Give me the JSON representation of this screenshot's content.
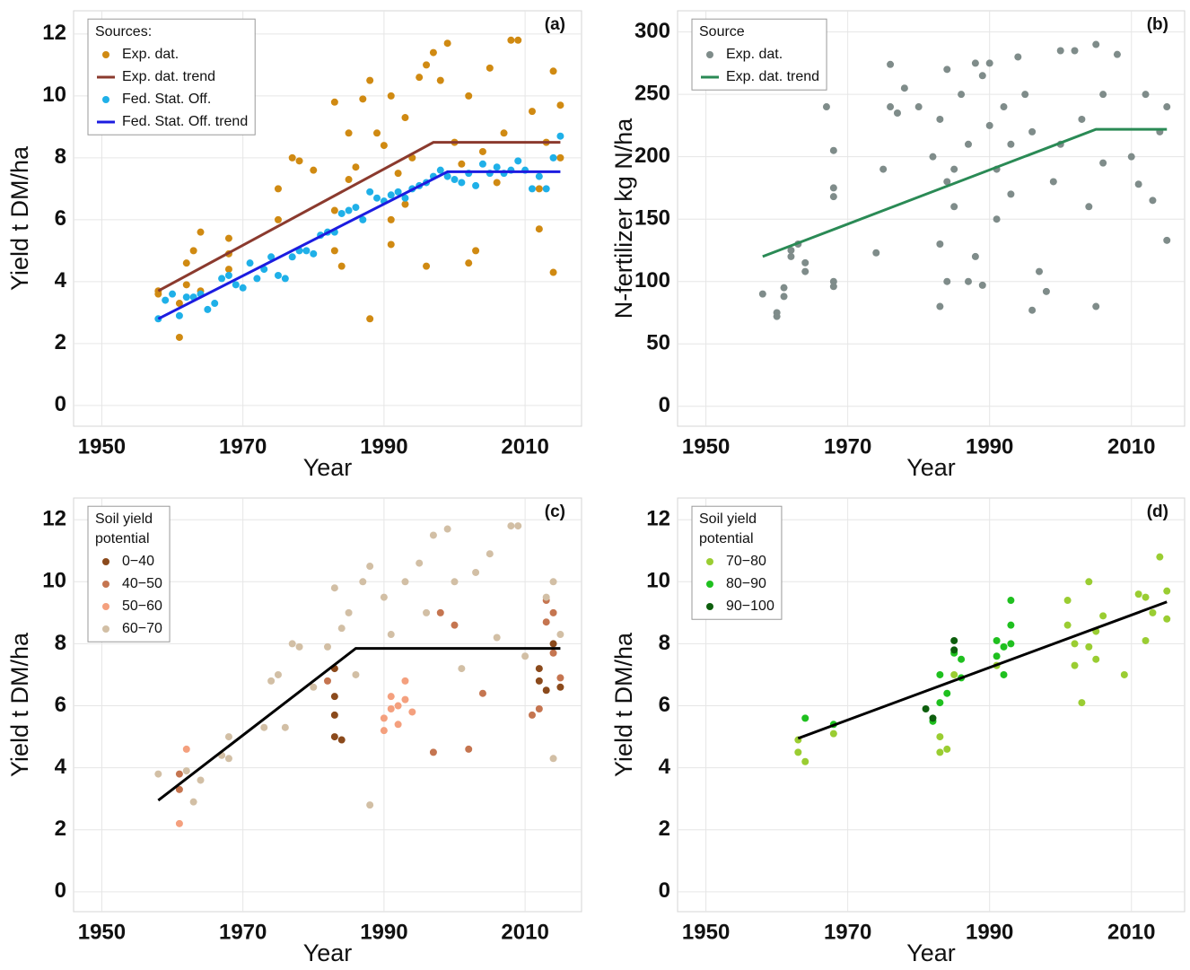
{
  "chart_data": [
    {
      "type": "scatter",
      "panel_label": "(a)",
      "x_label": "Year",
      "y_label": "Yield  t DM/ha",
      "legend_title": [
        "Sources:"
      ],
      "legend": "top-left",
      "grid": true,
      "xlim": [
        1946,
        2018
      ],
      "xticks": [
        1950,
        1970,
        1990,
        2010
      ],
      "ylim": [
        -0.67,
        12.75
      ],
      "yticks": [
        0,
        2,
        4,
        6,
        8,
        10,
        12
      ],
      "series": [
        {
          "name": "Exp. dat.",
          "color": "#d08a12",
          "mode": "markers",
          "x": [
            1958,
            1958,
            1961,
            1961,
            1962,
            1962,
            1963,
            1964,
            1964,
            1968,
            1968,
            1968,
            1975,
            1975,
            1977,
            1978,
            1980,
            1983,
            1983,
            1983,
            1984,
            1985,
            1985,
            1986,
            1987,
            1988,
            1988,
            1989,
            1990,
            1991,
            1991,
            1991,
            1992,
            1993,
            1993,
            1994,
            1995,
            1996,
            1996,
            1997,
            1998,
            1999,
            2000,
            2001,
            2002,
            2002,
            2003,
            2004,
            2005,
            2006,
            2007,
            2008,
            2009,
            2011,
            2012,
            2012,
            2013,
            2014,
            2014,
            2015,
            2015
          ],
          "values": [
            3.7,
            3.6,
            2.2,
            3.3,
            3.9,
            4.6,
            5.0,
            5.6,
            3.7,
            5.4,
            4.4,
            4.9,
            6.0,
            7.0,
            8.0,
            7.9,
            7.6,
            9.8,
            6.3,
            5.0,
            4.5,
            8.8,
            7.3,
            7.7,
            9.9,
            10.5,
            2.8,
            8.8,
            8.4,
            6.0,
            5.2,
            10.0,
            7.5,
            6.5,
            9.3,
            8.0,
            10.6,
            11.0,
            4.5,
            11.4,
            10.5,
            11.7,
            8.5,
            7.8,
            4.6,
            10.0,
            5.0,
            8.2,
            10.9,
            7.2,
            8.8,
            11.8,
            11.8,
            9.5,
            5.7,
            7.0,
            8.5,
            10.8,
            4.3,
            9.7,
            8.0
          ]
        },
        {
          "name": "Exp. dat. trend",
          "color": "#8b3a2e",
          "mode": "line",
          "x": [
            1958,
            1997,
            2015
          ],
          "values": [
            3.7,
            8.5,
            8.5
          ]
        },
        {
          "name": "Fed. Stat. Off.",
          "color": "#1fb0e8",
          "mode": "markers",
          "x": [
            1958,
            1959,
            1960,
            1961,
            1962,
            1963,
            1964,
            1965,
            1966,
            1967,
            1968,
            1969,
            1970,
            1971,
            1972,
            1973,
            1974,
            1975,
            1976,
            1977,
            1978,
            1979,
            1980,
            1981,
            1982,
            1983,
            1984,
            1985,
            1986,
            1987,
            1988,
            1989,
            1990,
            1991,
            1992,
            1993,
            1994,
            1995,
            1996,
            1997,
            1998,
            1999,
            2000,
            2001,
            2002,
            2003,
            2004,
            2005,
            2006,
            2007,
            2008,
            2009,
            2010,
            2011,
            2012,
            2013,
            2014,
            2015
          ],
          "values": [
            2.8,
            3.4,
            3.6,
            2.9,
            3.5,
            3.5,
            3.6,
            3.1,
            3.3,
            4.1,
            4.2,
            3.9,
            3.8,
            4.6,
            4.1,
            4.4,
            4.8,
            4.2,
            4.1,
            4.8,
            5.0,
            5.0,
            4.9,
            5.5,
            5.6,
            5.6,
            6.2,
            6.3,
            6.4,
            6.0,
            6.9,
            6.7,
            6.6,
            6.8,
            6.9,
            6.7,
            7.0,
            7.1,
            7.2,
            7.4,
            7.6,
            7.4,
            7.3,
            7.2,
            7.5,
            7.1,
            7.8,
            7.5,
            7.7,
            7.5,
            7.6,
            7.9,
            7.6,
            7.0,
            7.4,
            7.0,
            8.0,
            8.7
          ]
        },
        {
          "name": "Fed. Stat. Off. trend",
          "color": "#1c1ce0",
          "mode": "line",
          "x": [
            1958,
            1999,
            2015
          ],
          "values": [
            2.8,
            7.55,
            7.55
          ]
        }
      ]
    },
    {
      "type": "scatter",
      "panel_label": "(b)",
      "x_label": "Year",
      "y_label": "N-fertilizer  kg N/ha",
      "legend_title": [
        "Source"
      ],
      "legend": "top-left",
      "grid": true,
      "xlim": [
        1946,
        2017.5
      ],
      "xticks": [
        1950,
        1970,
        1990,
        2010
      ],
      "ylim": [
        -16,
        317
      ],
      "yticks": [
        0,
        50,
        100,
        150,
        200,
        250,
        300
      ],
      "series": [
        {
          "name": "Exp. dat.",
          "color": "#7f8c8a",
          "mode": "markers",
          "x": [
            1958,
            1960,
            1960,
            1961,
            1961,
            1962,
            1962,
            1963,
            1964,
            1964,
            1967,
            1968,
            1968,
            1968,
            1968,
            1968,
            1974,
            1975,
            1976,
            1976,
            1977,
            1978,
            1980,
            1982,
            1983,
            1983,
            1983,
            1984,
            1984,
            1984,
            1985,
            1985,
            1986,
            1987,
            1987,
            1988,
            1988,
            1989,
            1989,
            1990,
            1990,
            1991,
            1991,
            1992,
            1993,
            1993,
            1994,
            1995,
            1996,
            1996,
            1997,
            1998,
            1999,
            2000,
            2000,
            2002,
            2003,
            2004,
            2005,
            2005,
            2006,
            2006,
            2008,
            2010,
            2011,
            2012,
            2013,
            2014,
            2015,
            2015
          ],
          "values": [
            90,
            75,
            72,
            95,
            88,
            120,
            125,
            130,
            115,
            108,
            240,
            205,
            175,
            168,
            100,
            96,
            123,
            190,
            274,
            240,
            235,
            255,
            240,
            200,
            230,
            130,
            80,
            180,
            100,
            270,
            190,
            160,
            250,
            210,
            100,
            275,
            120,
            265,
            97,
            275,
            225,
            190,
            150,
            240,
            210,
            170,
            280,
            250,
            220,
            77,
            108,
            92,
            180,
            285,
            210,
            285,
            230,
            160,
            290,
            80,
            250,
            195,
            282,
            200,
            178,
            250,
            165,
            220,
            133,
            240
          ]
        },
        {
          "name": "Exp. dat. trend",
          "color": "#2a8a55",
          "mode": "line",
          "x": [
            1958,
            2005,
            2015
          ],
          "values": [
            120,
            222,
            222
          ]
        }
      ]
    },
    {
      "type": "scatter",
      "panel_label": "(c)",
      "x_label": "Year",
      "y_label": "Yield  t DM/ha",
      "legend_title": [
        "Soil yield",
        "potential"
      ],
      "legend": "top-left",
      "grid": true,
      "xlim": [
        1946,
        2018
      ],
      "xticks": [
        1950,
        1970,
        1990,
        2010
      ],
      "ylim": [
        -0.64,
        12.7
      ],
      "yticks": [
        0,
        2,
        4,
        6,
        8,
        10,
        12
      ],
      "series": [
        {
          "name": "0−40",
          "color": "#8b4a1c",
          "mode": "markers",
          "x": [
            1983,
            1983,
            1983,
            1983,
            1984,
            2012,
            2012,
            2013,
            2014,
            2015
          ],
          "values": [
            7.2,
            6.3,
            5.7,
            5.0,
            4.9,
            7.2,
            6.8,
            6.5,
            8.0,
            6.6
          ]
        },
        {
          "name": "40−50",
          "color": "#c57550",
          "mode": "markers",
          "x": [
            1961,
            1961,
            1982,
            1997,
            1998,
            2000,
            2002,
            2004,
            2011,
            2012,
            2013,
            2013,
            2014,
            2014,
            2015
          ],
          "values": [
            3.3,
            3.8,
            6.8,
            4.5,
            9.0,
            8.6,
            4.6,
            6.4,
            5.7,
            5.9,
            9.4,
            8.7,
            9.0,
            7.7,
            6.9
          ]
        },
        {
          "name": "50−60",
          "color": "#f4a07e",
          "mode": "markers",
          "x": [
            1961,
            1962,
            1990,
            1990,
            1991,
            1991,
            1992,
            1992,
            1993,
            1993,
            1994
          ],
          "values": [
            2.2,
            4.6,
            5.2,
            5.6,
            5.9,
            6.3,
            6.0,
            5.4,
            6.8,
            6.2,
            5.8
          ]
        },
        {
          "name": "60−70",
          "color": "#d2bfa5",
          "mode": "markers",
          "x": [
            1958,
            1962,
            1963,
            1964,
            1967,
            1968,
            1968,
            1973,
            1974,
            1975,
            1976,
            1977,
            1978,
            1980,
            1982,
            1983,
            1984,
            1985,
            1986,
            1987,
            1988,
            1988,
            1990,
            1991,
            1993,
            1995,
            1996,
            1997,
            1999,
            2000,
            2001,
            2003,
            2005,
            2006,
            2008,
            2009,
            2010,
            2013,
            2014,
            2014,
            2015
          ],
          "values": [
            3.8,
            3.9,
            2.9,
            3.6,
            4.4,
            5.0,
            4.3,
            5.3,
            6.8,
            7.0,
            5.3,
            8.0,
            7.9,
            6.6,
            7.9,
            9.8,
            8.5,
            9.0,
            7.0,
            10.0,
            10.5,
            2.8,
            9.5,
            8.3,
            10.0,
            10.6,
            9.0,
            11.5,
            11.7,
            10.0,
            7.2,
            10.3,
            10.9,
            8.2,
            11.8,
            11.8,
            7.6,
            9.5,
            10.0,
            4.3,
            8.3
          ]
        },
        {
          "color": "#000000",
          "mode": "line",
          "x": [
            1958,
            1986,
            2015
          ],
          "values": [
            2.95,
            7.85,
            7.85
          ]
        }
      ]
    },
    {
      "type": "scatter",
      "panel_label": "(d)",
      "x_label": "Year",
      "y_label": "Yield  t DM/ha",
      "legend_title": [
        "Soil yield",
        "potential"
      ],
      "legend": "top-left",
      "grid": true,
      "xlim": [
        1946,
        2017.5
      ],
      "xticks": [
        1950,
        1970,
        1990,
        2010
      ],
      "ylim": [
        -0.64,
        12.7
      ],
      "yticks": [
        0,
        2,
        4,
        6,
        8,
        10,
        12
      ],
      "series": [
        {
          "name": "70−80",
          "color": "#9acd32",
          "mode": "markers",
          "x": [
            1963,
            1963,
            1964,
            1968,
            1983,
            1983,
            1984,
            1985,
            1991,
            2001,
            2001,
            2002,
            2002,
            2003,
            2004,
            2004,
            2005,
            2005,
            2006,
            2009,
            2011,
            2012,
            2012,
            2013,
            2014,
            2015,
            2015
          ],
          "values": [
            4.9,
            4.5,
            4.2,
            5.1,
            5.0,
            4.5,
            4.6,
            7.0,
            7.3,
            9.4,
            8.6,
            8.0,
            7.3,
            6.1,
            10.0,
            7.9,
            8.4,
            7.5,
            8.9,
            7.0,
            9.6,
            8.1,
            9.5,
            9.0,
            10.8,
            9.7,
            8.8
          ]
        },
        {
          "name": "80−90",
          "color": "#1fc01f",
          "mode": "markers",
          "x": [
            1964,
            1968,
            1982,
            1983,
            1983,
            1984,
            1985,
            1986,
            1986,
            1991,
            1991,
            1992,
            1992,
            1993,
            1993,
            1993
          ],
          "values": [
            5.6,
            5.4,
            5.5,
            6.1,
            7.0,
            6.4,
            7.7,
            7.5,
            6.9,
            8.1,
            7.6,
            7.0,
            7.9,
            9.4,
            8.6,
            8.0
          ]
        },
        {
          "name": "90−100",
          "color": "#0d5e0d",
          "mode": "markers",
          "x": [
            1981,
            1982,
            1985,
            1985
          ],
          "values": [
            5.9,
            5.6,
            8.1,
            7.8
          ]
        },
        {
          "color": "#000000",
          "mode": "line",
          "x": [
            1963,
            2015
          ],
          "values": [
            4.95,
            9.35
          ]
        }
      ]
    }
  ]
}
